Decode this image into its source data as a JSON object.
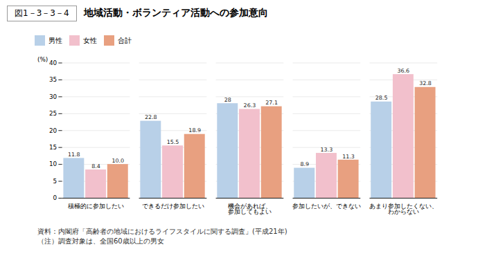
{
  "chart_data": {
    "type": "bar",
    "title": "地域活動・ボランティア活動への参加意向",
    "subtitle": "図1－3－3－4",
    "annotations": [
      "資料：内閣府「高齢者の地域におけるライフスタイルに関する調査」(平成21年)",
      "（注）調査対象は、全国60歳以上の男女"
    ],
    "categories": [
      "積極的に参加したい",
      "できるだけ参加したい",
      "機会があれば、\n参加してもよい",
      "参加したいが、できない",
      "あまり参加したくない、\nわからない"
    ],
    "series": [
      {
        "name": "男性",
        "color": "#b8d0e8",
        "values": [
          11.8,
          22.8,
          28.0,
          8.9,
          28.5
        ]
      },
      {
        "name": "女性",
        "color": "#f2c0cc",
        "values": [
          8.4,
          15.5,
          26.3,
          13.3,
          36.6
        ]
      },
      {
        "name": "合計",
        "color": "#e8a080",
        "values": [
          10.0,
          18.9,
          27.1,
          11.3,
          32.8
        ],
        "value_labels": [
          "10.0",
          "18.9",
          "27.1",
          "11.3",
          "32.8"
        ]
      }
    ],
    "ylabel": "(%)",
    "ylim": [
      0,
      40
    ],
    "yticks": [
      0,
      5,
      10,
      15,
      20,
      25,
      30,
      35,
      40
    ],
    "grid": true,
    "legend": "top",
    "data_labels": true
  }
}
